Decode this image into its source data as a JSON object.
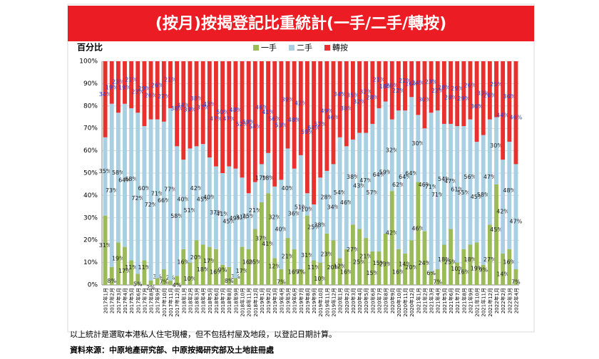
{
  "chart_data": {
    "type": "stacked_bar_100",
    "title": "(按月)按揭登記比重統計(一手/二手/轉按)",
    "y_label": "百分比",
    "categories": [
      "2017年1月",
      "2017年2月",
      "2017年3月",
      "2017年4月",
      "2017年5月",
      "2017年6月",
      "2017年7月",
      "2017年8月",
      "2017年9月",
      "2017年10月",
      "2017年11月",
      "2017年12月",
      "2018年1月",
      "2018年2月",
      "2018年3月",
      "2018年4月",
      "2018年5月",
      "2018年6月",
      "2018年7月",
      "2018年8月",
      "2018年9月",
      "2018年10月",
      "2018年11月",
      "2018年12月",
      "2019年1月",
      "2019年2月",
      "2019年3月",
      "2019年4月",
      "2019年5月",
      "2019年6月",
      "2019年7月",
      "2019年8月",
      "2019年9月",
      "2019年10月",
      "2019年11月",
      "2019年12月",
      "2020年1月",
      "2020年2月",
      "2020年3月",
      "2020年4月",
      "2020年5月",
      "2020年6月",
      "2020年7月",
      "2020年8月",
      "2020年9月",
      "2020年10月",
      "2020年11月",
      "2020年12月",
      "2021年1月",
      "2021年2月",
      "2021年3月",
      "2021年4月",
      "2021年5月",
      "2021年6月",
      "2021年7月",
      "2021年8月",
      "2021年9月",
      "2021年10月",
      "2021年11月",
      "2021年12月",
      "2022年1月",
      "2022年2月",
      "2022年3月",
      "2022年4月"
    ],
    "series": [
      {
        "name": "一手",
        "color": "#9bbb59",
        "label_color": "#222222",
        "values": [
          31,
          8,
          19,
          17,
          11,
          5,
          11,
          2,
          3,
          7,
          2,
          4,
          16,
          10,
          20,
          18,
          17,
          16,
          9,
          8,
          3,
          17,
          16,
          25,
          37,
          41,
          12,
          7,
          21,
          16,
          7,
          31,
          11,
          10,
          23,
          20,
          12,
          16,
          27,
          25,
          21,
          15,
          15,
          23,
          42,
          16,
          14,
          20,
          46,
          24,
          6,
          7,
          18,
          25,
          10,
          16,
          18,
          19,
          9,
          27,
          45,
          14,
          16,
          7
        ],
        "value_labels": [
          "31%",
          "8%",
          "19%",
          "17%",
          "11%",
          "5%",
          "11%",
          "2%",
          "3%",
          "7%",
          "2%",
          "4%",
          "16%",
          "10%",
          "20%",
          "18%",
          "17%",
          "16%",
          "9%",
          "8%",
          "3%",
          "17%",
          "16%",
          "25%",
          "37%",
          "41%",
          "12%",
          "7%",
          "21%",
          "16%",
          "7%",
          "31%",
          "11%",
          "10%",
          "23%",
          "20%",
          "12%",
          "16%",
          "27%",
          "25%",
          "21%",
          "15%",
          "15%",
          "23%",
          "42%",
          "16%",
          "14%",
          "20%",
          "46%",
          "24%",
          "6%",
          "7%",
          "18%",
          "25%",
          "10%",
          "16%",
          "18%",
          "19%",
          "9%",
          "27%",
          "45%",
          "14%",
          "16%",
          "7%"
        ]
      },
      {
        "name": "二手",
        "color": "#a9cfe3",
        "label_color": "#222222",
        "values": [
          35,
          73,
          58,
          64,
          68,
          72,
          60,
          72,
          71,
          66,
          77,
          58,
          40,
          51,
          42,
          45,
          40,
          37,
          41,
          45,
          49,
          31,
          25,
          21,
          17,
          18,
          32,
          40,
          40,
          36,
          51,
          10,
          25,
          38,
          28,
          34,
          54,
          46,
          38,
          43,
          47,
          57,
          64,
          59,
          32,
          62,
          64,
          64,
          30,
          46,
          71,
          71,
          54,
          47,
          61,
          55,
          56,
          45,
          58,
          47,
          30,
          42,
          48,
          47
        ],
        "value_labels": [
          "35%",
          "73%",
          "58%",
          "64%",
          "68%",
          "72%",
          "60%",
          "72%",
          "71%",
          "66%",
          "77%",
          "58%",
          "40%",
          "51%",
          "42%",
          "45%",
          "40%",
          "37%",
          "41%",
          "45%",
          "49%",
          "31%",
          "25%",
          "21%",
          "17%",
          "18%",
          "32%",
          "40%",
          "40%",
          "36%",
          "51%",
          "10%",
          "25%",
          "38%",
          "28%",
          "34%",
          "54%",
          "46%",
          "38%",
          "43%",
          "47%",
          "57%",
          "64%",
          "59%",
          "32%",
          "62%",
          "64%",
          "64%",
          "30%",
          "46%",
          "71%",
          "71%",
          "54%",
          "47%",
          "61%",
          "55%",
          "56%",
          "45%",
          "58%",
          "47%",
          "30%",
          "42%",
          "48%",
          "47%"
        ]
      },
      {
        "name": "轉按",
        "color": "#e8302e",
        "label_color": "#2b3fc8",
        "values": [
          34,
          19,
          23,
          19,
          21,
          23,
          29,
          26,
          26,
          27,
          21,
          38,
          44,
          39,
          38,
          37,
          43,
          47,
          50,
          47,
          48,
          52,
          59,
          54,
          46,
          41,
          56,
          53,
          39,
          48,
          42,
          59,
          64,
          52,
          49,
          46,
          34,
          38,
          35,
          32,
          32,
          28,
          21,
          18,
          26,
          22,
          22,
          16,
          24,
          30,
          23,
          22,
          28,
          28,
          29,
          29,
          26,
          36,
          33,
          26,
          25,
          44,
          36,
          46
        ],
        "value_labels": [
          "34%",
          "19%",
          "23%",
          "19%",
          "21%",
          "23%",
          "29%",
          "26%",
          "26%",
          "27%",
          "21%",
          "38%",
          "44%",
          "39%",
          "38%",
          "37%",
          "43%",
          "47%",
          "50%",
          "47%",
          "48%",
          "52%",
          "59%",
          "54%",
          "46%",
          "41%",
          "56%",
          "53%",
          "39%",
          "48%",
          "42%",
          "59%",
          "64%",
          "52%",
          "49%",
          "46%",
          "34%",
          "38%",
          "35%",
          "32%",
          "32%",
          "28%",
          "21%",
          "18%",
          "26%",
          "22%",
          "22%",
          "16%",
          "24%",
          "30%",
          "23%",
          "22%",
          "28%",
          "28%",
          "29%",
          "29%",
          "26%",
          "36%",
          "33%",
          "26%",
          "25%",
          "44%",
          "36%",
          "46%"
        ]
      }
    ],
    "ylim": [
      0,
      100
    ],
    "yticks": [
      {
        "value": 0,
        "label": "0%"
      },
      {
        "value": 10,
        "label": "10%"
      },
      {
        "value": 20,
        "label": "20%"
      },
      {
        "value": 30,
        "label": "30%"
      },
      {
        "value": 40,
        "label": "40%"
      },
      {
        "value": 50,
        "label": "50%"
      },
      {
        "value": 60,
        "label": "60%"
      },
      {
        "value": 70,
        "label": "70%"
      },
      {
        "value": 80,
        "label": "80%"
      },
      {
        "value": 90,
        "label": "90%"
      },
      {
        "value": 100,
        "label": "100%"
      }
    ],
    "grid": true,
    "legend": "top",
    "footnote": "以上統計是選取本港私人住宅現樓，但不包括村屋及地段，以登記日期計算。",
    "source": "資料來源：中原地產研究部、中原按揭研究部及土地註冊處"
  }
}
